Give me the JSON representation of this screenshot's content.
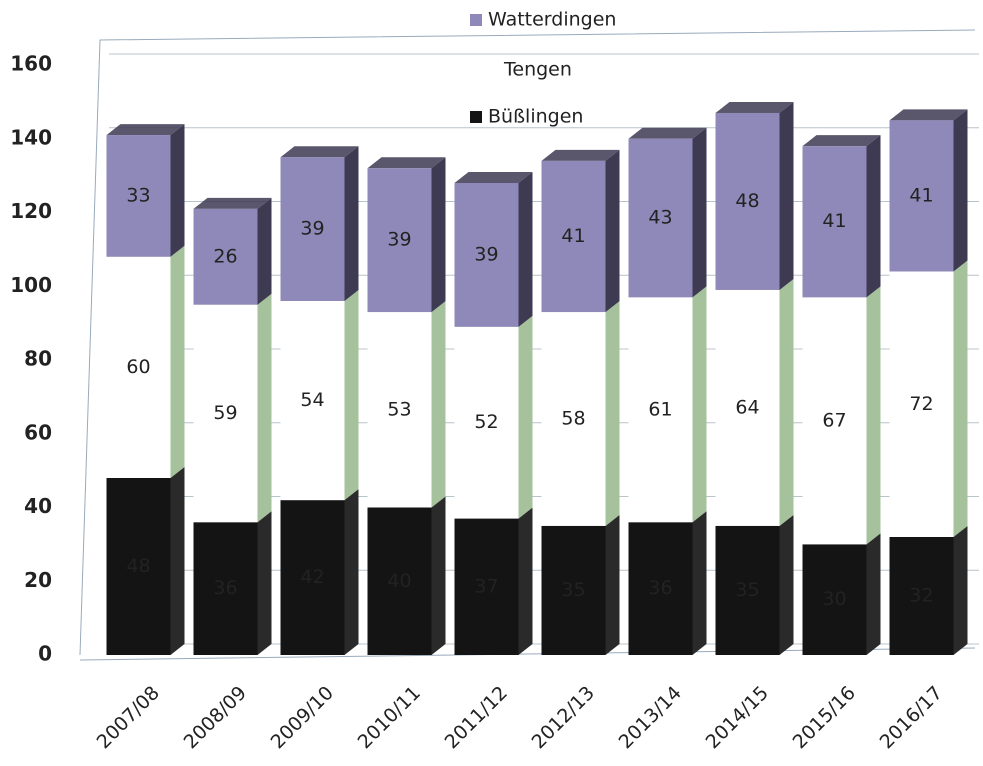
{
  "chart_data": {
    "type": "bar3d_stacked",
    "categories": [
      "2007/08",
      "2008/09",
      "2009/10",
      "2010/11",
      "2011/12",
      "2012/13",
      "2013/14",
      "2014/15",
      "2015/16",
      "2016/17"
    ],
    "series": [
      {
        "name": "Büßlingen",
        "color": "#141414",
        "side_color": "#2a2a2a",
        "label_color": "#e8e8e8",
        "values": [
          48,
          36,
          42,
          40,
          37,
          35,
          36,
          35,
          30,
          32
        ]
      },
      {
        "name": "Tengen",
        "color": "#ffffff",
        "side_color": "#a6c29d",
        "label_color": "#222222",
        "values": [
          60,
          59,
          54,
          53,
          52,
          58,
          61,
          64,
          67,
          72
        ]
      },
      {
        "name": "Watterdingen",
        "color": "#8f89b9",
        "side_color": "#3d3a52",
        "label_color": "#222222",
        "values": [
          33,
          26,
          39,
          39,
          39,
          41,
          43,
          48,
          41,
          41
        ]
      }
    ],
    "ylim": [
      0,
      160
    ],
    "yticks": [
      0,
      20,
      40,
      60,
      80,
      100,
      120,
      140,
      160
    ],
    "grid": true
  }
}
